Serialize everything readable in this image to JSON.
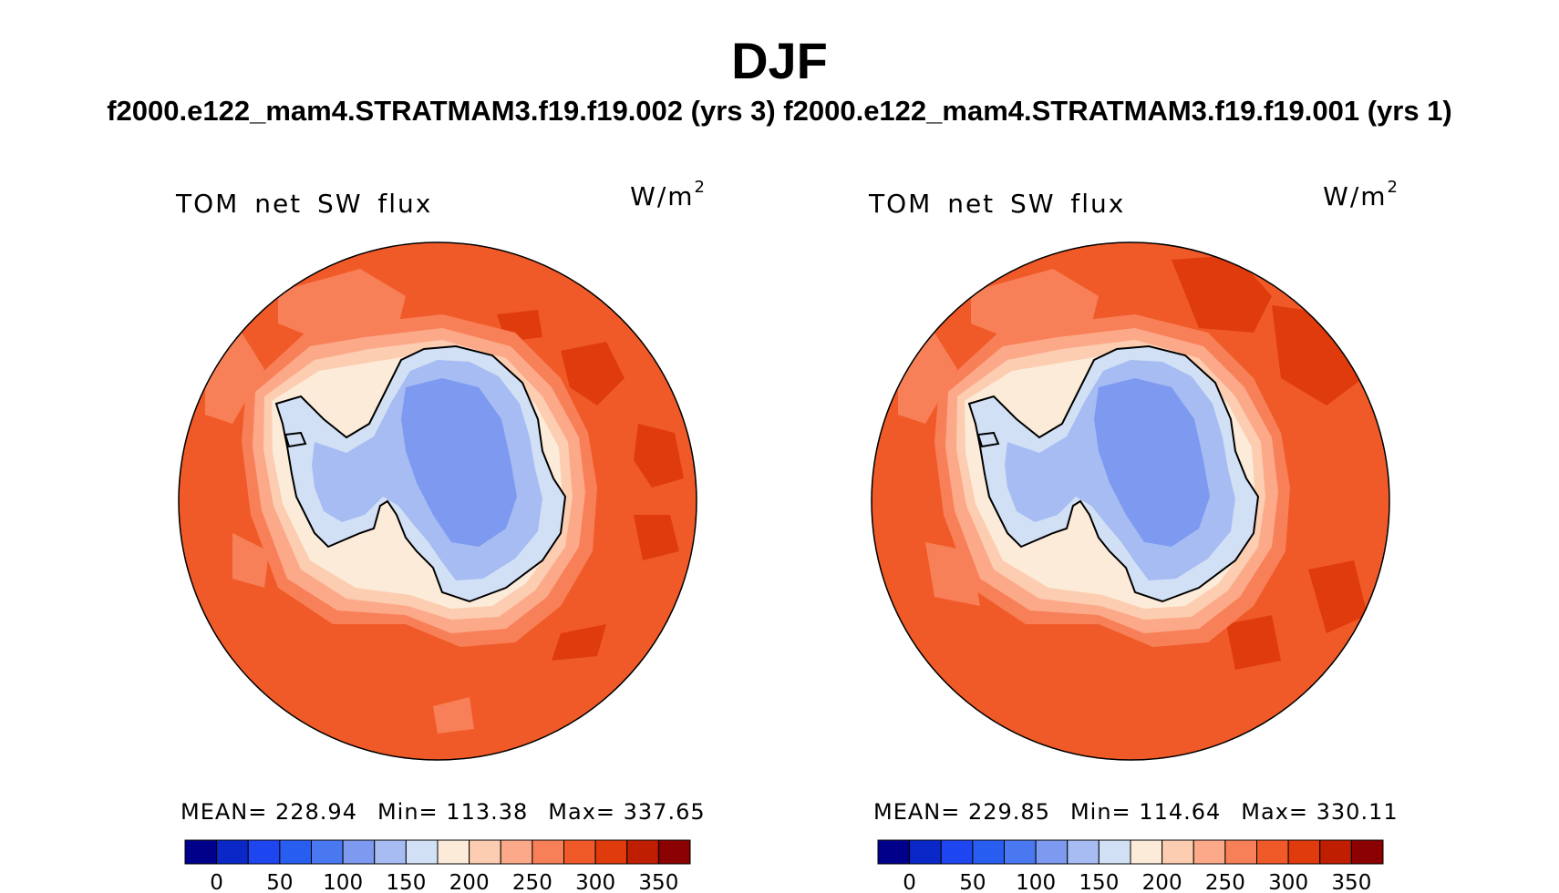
{
  "title": "DJF",
  "subtitle": "f2000.e122_mam4.STRATMAM3.f19.f19.002 (yrs 3)  f2000.e122_mam4.STRATMAM3.f19.f19.001 (yrs 1)",
  "colorbar": {
    "ticks": [
      "0",
      "50",
      "100",
      "150",
      "200",
      "250",
      "300",
      "350"
    ],
    "colors": [
      "#00008b",
      "#0a28c8",
      "#1e46f0",
      "#285ef0",
      "#4a78f0",
      "#7d9af0",
      "#a6bcf2",
      "#d2e0f5",
      "#fcebd8",
      "#fccdb0",
      "#fca98a",
      "#f88058",
      "#f05a28",
      "#e03b0c",
      "#c01e00",
      "#8b0000"
    ]
  },
  "panels": [
    {
      "variable": "TOM net SW flux",
      "units": "W/m",
      "units_exp": "2",
      "mean": "MEAN= 228.94",
      "min": "Min= 113.38",
      "max": "Max= 337.65"
    },
    {
      "variable": "TOM net SW flux",
      "units": "W/m",
      "units_exp": "2",
      "mean": "MEAN= 229.85",
      "min": "Min= 114.64",
      "max": "Max= 330.11"
    }
  ]
}
